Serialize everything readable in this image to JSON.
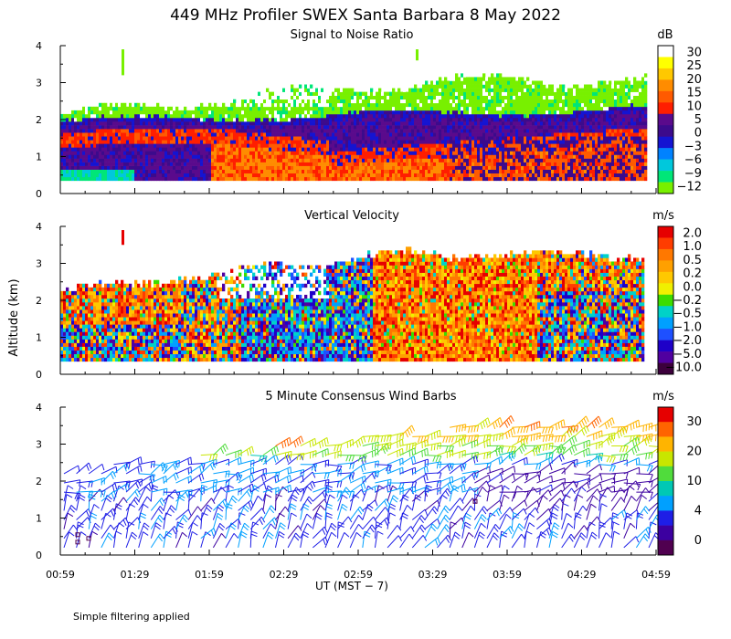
{
  "title": "449 MHz Profiler SWEX Santa Barbara  8 May 2022",
  "footnote": "Simple filtering applied",
  "chart_data": [
    {
      "type": "heatmap",
      "title": "Signal to Noise Ratio",
      "ylabel": "Altitude (km)",
      "xlabel": "UT  (MST − 7)",
      "ylim": [
        0,
        4
      ],
      "yticks": [
        "0",
        "1",
        "2",
        "3",
        "4"
      ],
      "xticks": [
        "00:59",
        "01:29",
        "01:59",
        "02:29",
        "02:59",
        "03:29",
        "03:59",
        "04:29",
        "04:59"
      ],
      "colorbar": {
        "unit": "dB",
        "labels": [
          "30",
          "25",
          "20",
          "15",
          "10",
          "5",
          "0",
          "−3",
          "−6",
          "−9",
          "−12"
        ],
        "colors": [
          "#ffffff",
          "#ffff00",
          "#ffc800",
          "#ff8c00",
          "#ff5a00",
          "#ff1e00",
          "#5a0a8c",
          "#3c0a8c",
          "#1414d2",
          "#0082ff",
          "#00c8dc",
          "#00e678",
          "#78f000"
        ]
      }
    },
    {
      "type": "heatmap",
      "title": "Vertical Velocity",
      "ylim": [
        0,
        4
      ],
      "yticks": [
        "0",
        "1",
        "2",
        "3",
        "4"
      ],
      "colorbar": {
        "unit": "m/s",
        "labels": [
          "2.0",
          "1.0",
          "0.5",
          "0.2",
          "0.0",
          "−0.2",
          "−0.5",
          "−1.0",
          "−2.0",
          "−5.0",
          "−10.0"
        ],
        "colors": [
          "#e60000",
          "#ff3c00",
          "#ff7800",
          "#ffa000",
          "#ffc800",
          "#f0f000",
          "#3cdc00",
          "#00d2c8",
          "#00a0ff",
          "#1e50ff",
          "#1e00c8",
          "#5000a0",
          "#3c003c"
        ]
      }
    },
    {
      "type": "scatter",
      "title": "5 Minute Consensus Wind Barbs",
      "ylim": [
        0,
        4
      ],
      "yticks": [
        "0",
        "1",
        "2",
        "3",
        "4"
      ],
      "colorbar": {
        "unit": "m/s",
        "labels": [
          "30",
          "20",
          "10",
          "4",
          "0"
        ],
        "colors": [
          "#e60000",
          "#ff6400",
          "#ffb400",
          "#c8e600",
          "#50dc3c",
          "#00c8b4",
          "#00a0ff",
          "#1e1ee6",
          "#3c00a0",
          "#500050"
        ]
      }
    }
  ]
}
